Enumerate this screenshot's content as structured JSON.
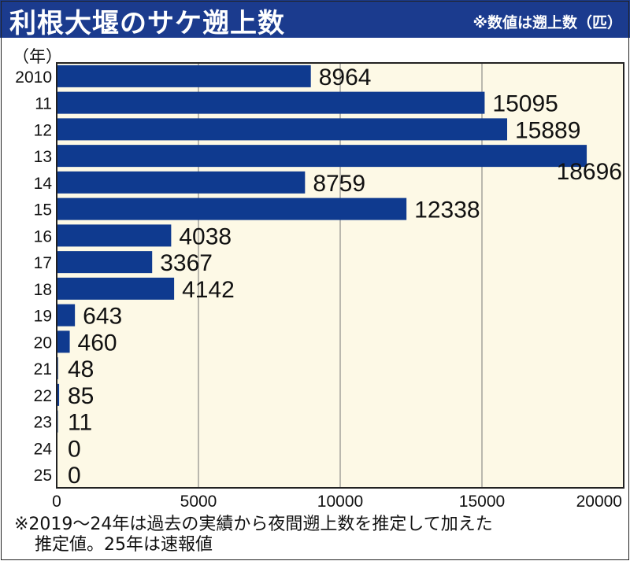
{
  "header": {
    "title": "利根大堰のサケ遡上数",
    "note": "※数値は遡上数（匹）"
  },
  "chart_data": {
    "type": "bar",
    "orientation": "horizontal",
    "title": "利根大堰のサケ遡上数",
    "ylabel": "（年）",
    "xlabel": "",
    "categories": [
      "2010",
      "11",
      "12",
      "13",
      "14",
      "15",
      "16",
      "17",
      "18",
      "19",
      "20",
      "21",
      "22",
      "23",
      "24",
      "25"
    ],
    "values": [
      8964,
      15095,
      15889,
      18696,
      8759,
      12338,
      4038,
      3367,
      4142,
      643,
      460,
      48,
      85,
      11,
      0,
      0
    ],
    "xlim": [
      0,
      20000
    ],
    "xticks": [
      "0",
      "5000",
      "10000",
      "15000",
      "20000"
    ],
    "grid": "vertical",
    "colors": {
      "bar": "#0f3a8f",
      "plot_bg": "#fdf9e6",
      "header_bg": "#1b3b8e"
    }
  },
  "footnote": {
    "line1": "※2019～24年は過去の実績から夜間遡上数を推定して加えた",
    "line2": "推定値。25年は速報値"
  }
}
